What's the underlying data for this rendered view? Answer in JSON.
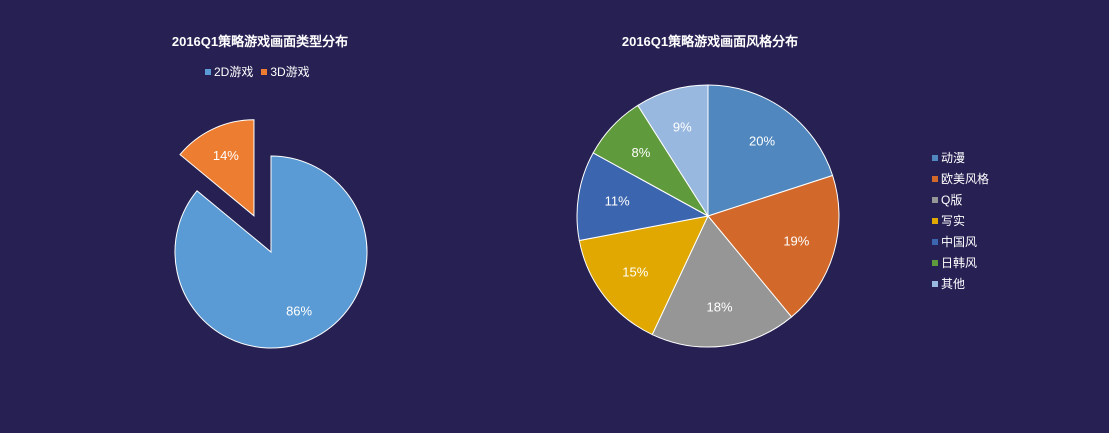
{
  "chart_data": [
    {
      "type": "pie",
      "title": "2016Q1策略游戏画面类型分布",
      "legend_position": "top",
      "categories": [
        "2D游戏",
        "3D游戏"
      ],
      "values": [
        86,
        14
      ],
      "labels": [
        "86%",
        "14%"
      ],
      "colors": [
        "#5B9BD5",
        "#ED7D31"
      ],
      "exploded": [
        false,
        true
      ]
    },
    {
      "type": "pie",
      "title": "2016Q1策略游戏画面风格分布",
      "legend_position": "right",
      "categories": [
        "动漫",
        "欧美风格",
        "Q版",
        "写实",
        "中国风",
        "日韩风",
        "其他"
      ],
      "values": [
        20,
        19,
        18,
        15,
        11,
        8,
        9
      ],
      "labels": [
        "20%",
        "19%",
        "18%",
        "15%",
        "11%",
        "8%",
        "9%"
      ],
      "colors": [
        "#4F87BE",
        "#D2692A",
        "#969696",
        "#E0A800",
        "#3B65AE",
        "#5F9A3C",
        "#99B8E0"
      ]
    }
  ]
}
